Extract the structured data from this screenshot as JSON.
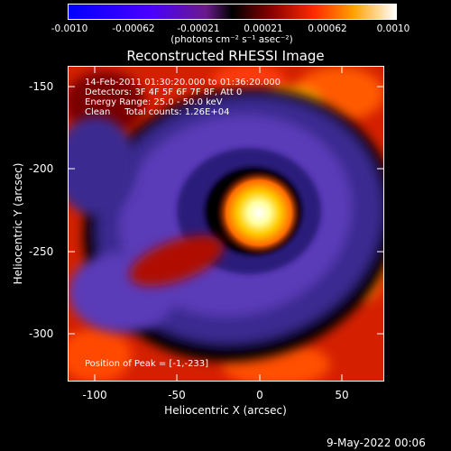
{
  "colorbar": {
    "ticks": [
      "-0.0010",
      "-0.00062",
      "-0.00021",
      "0.00021",
      "0.00062",
      "0.0010"
    ],
    "units_label": "(photons cm⁻² s⁻¹ asec⁻²)"
  },
  "plot": {
    "title": "Reconstructed RHESSI Image",
    "info_lines": [
      "14-Feb-2011 01:30:20.000 to 01:36:20.000",
      "Detectors: 3F 4F 5F 6F 7F 8F, Att 0",
      "Energy Range: 25.0 - 50.0 keV",
      "Clean     Total counts: 1.26E+04"
    ],
    "peak_label": "Position of Peak = [-1,-233]",
    "xlabel": "Heliocentric X (arcsec)",
    "ylabel": "Heliocentric Y (arcsec)",
    "x_ticks": [
      "-100",
      "-50",
      "0",
      "50"
    ],
    "y_ticks": [
      "-150",
      "-200",
      "-250",
      "-300"
    ]
  },
  "footer": {
    "date": "9-May-2022 00:06"
  },
  "chart_data": {
    "type": "heatmap",
    "title": "Reconstructed RHESSI Image",
    "xlabel": "Heliocentric X (arcsec)",
    "ylabel": "Heliocentric Y (arcsec)",
    "xlim": [
      -117,
      75
    ],
    "ylim": [
      -328,
      -137
    ],
    "colorbar_range": [
      -0.001,
      0.001
    ],
    "peak_position": [
      -1,
      -233
    ],
    "colors": {
      "background": "#000000",
      "negative": "#0000ff",
      "zero": "#000000",
      "positive_mid": "#ff2a00",
      "positive_max": "#ffffff"
    }
  }
}
